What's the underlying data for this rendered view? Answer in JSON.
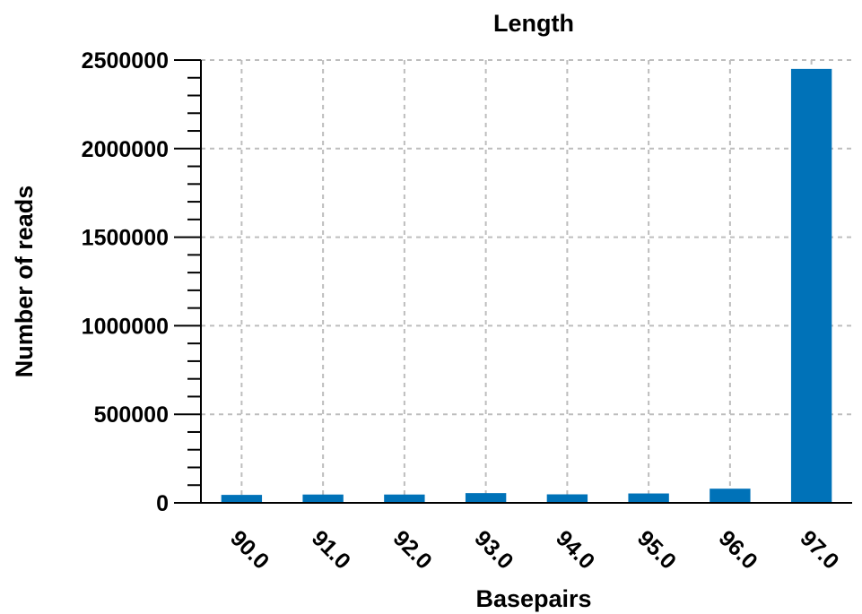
{
  "chart_data": {
    "type": "bar",
    "title": "Length",
    "xlabel": "Basepairs",
    "ylabel": "Number of reads",
    "categories": [
      "90.0",
      "91.0",
      "92.0",
      "93.0",
      "94.0",
      "95.0",
      "96.0",
      "97.0"
    ],
    "values": [
      45000,
      47000,
      47000,
      55000,
      48000,
      53000,
      80000,
      2450000
    ],
    "ylim": [
      0,
      2500000
    ],
    "yticks": [
      "0",
      "500000",
      "1000000",
      "1500000",
      "2000000",
      "2500000"
    ],
    "grid": true,
    "bar_color": "#0072b8",
    "legend": "none"
  }
}
